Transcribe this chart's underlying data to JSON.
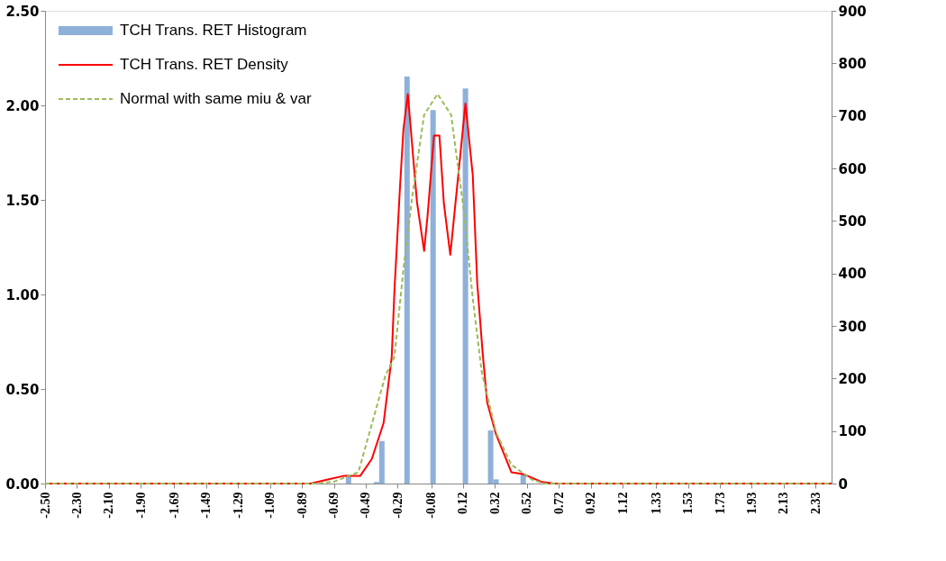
{
  "chart_data": {
    "type": "line",
    "xlim": [
      -2.5,
      2.43
    ],
    "xticks": [
      {
        "value": -2.5,
        "label": "-2.50"
      },
      {
        "value": -2.3,
        "label": "-2.30"
      },
      {
        "value": -2.1,
        "label": "-2.10"
      },
      {
        "value": -1.9,
        "label": "-1.90"
      },
      {
        "value": -1.69,
        "label": "-1.69"
      },
      {
        "value": -1.49,
        "label": "-1.49"
      },
      {
        "value": -1.29,
        "label": "-1.29"
      },
      {
        "value": -1.09,
        "label": "-1.09"
      },
      {
        "value": -0.89,
        "label": "-0.89"
      },
      {
        "value": -0.69,
        "label": "-0.69"
      },
      {
        "value": -0.49,
        "label": "-0.49"
      },
      {
        "value": -0.29,
        "label": "-0.29"
      },
      {
        "value": -0.08,
        "label": "-0.08"
      },
      {
        "value": 0.12,
        "label": "0.12"
      },
      {
        "value": 0.32,
        "label": "0.32"
      },
      {
        "value": 0.52,
        "label": "0.52"
      },
      {
        "value": 0.72,
        "label": "0.72"
      },
      {
        "value": 0.92,
        "label": "0.92"
      },
      {
        "value": 1.12,
        "label": "1.12"
      },
      {
        "value": 1.33,
        "label": "1.33"
      },
      {
        "value": 1.53,
        "label": "1.53"
      },
      {
        "value": 1.73,
        "label": "1.73"
      },
      {
        "value": 1.93,
        "label": "1.93"
      },
      {
        "value": 2.13,
        "label": "2.13"
      },
      {
        "value": 2.33,
        "label": "2.33"
      }
    ],
    "ylim": [
      0,
      2.5
    ],
    "yticks": [
      {
        "value": 0,
        "label": "0.00"
      },
      {
        "value": 0.5,
        "label": "0.50"
      },
      {
        "value": 1.0,
        "label": "1.00"
      },
      {
        "value": 1.5,
        "label": "1.50"
      },
      {
        "value": 2.0,
        "label": "2.00"
      },
      {
        "value": 2.5,
        "label": "2.50"
      }
    ],
    "y2lim": [
      0,
      900
    ],
    "y2ticks": [
      0,
      100,
      200,
      300,
      400,
      500,
      600,
      700,
      800,
      900
    ],
    "grid": false,
    "legend": "top left",
    "series": [
      {
        "name": "TCH Trans. RET Histogram",
        "type": "bar",
        "axis": "y2",
        "color": "#8eb0d9",
        "x": [
          -0.598,
          -0.423,
          -0.389,
          -0.231,
          -0.068,
          0.135,
          0.293,
          0.327,
          0.497
        ],
        "values": [
          17,
          3,
          81,
          775,
          711,
          752,
          101,
          8,
          17
        ]
      },
      {
        "name": "TCH Trans. RET Density",
        "color": "#ff0000",
        "line_style": "solid",
        "x": [
          -2.5,
          -0.835,
          -0.734,
          -0.632,
          -0.525,
          -0.452,
          -0.378,
          -0.327,
          -0.31,
          -0.277,
          -0.254,
          -0.226,
          -0.169,
          -0.124,
          -0.102,
          -0.062,
          -0.028,
          0.0,
          0.04,
          0.096,
          0.135,
          0.181,
          0.209,
          0.243,
          0.271,
          0.327,
          0.423,
          0.497,
          0.609,
          0.688,
          2.43
        ],
        "values": [
          0,
          0,
          0.02,
          0.04,
          0.04,
          0.13,
          0.32,
          0.67,
          1.02,
          1.54,
          1.87,
          2.06,
          1.49,
          1.23,
          1.42,
          1.84,
          1.84,
          1.48,
          1.21,
          1.68,
          2.01,
          1.63,
          1.06,
          0.69,
          0.43,
          0.26,
          0.06,
          0.05,
          0.01,
          0,
          0
        ]
      },
      {
        "name": "Normal with same miu & var",
        "color": "#9bbb59",
        "line_style": "dashed",
        "x": [
          -2.5,
          -0.8,
          -0.688,
          -0.536,
          -0.367,
          -0.31,
          -0.254,
          -0.198,
          -0.124,
          -0.04,
          0.045,
          0.124,
          0.181,
          0.237,
          0.327,
          0.423,
          0.553,
          0.632,
          2.43
        ],
        "values": [
          0,
          0,
          0.01,
          0.06,
          0.57,
          0.67,
          1.13,
          1.52,
          1.95,
          2.06,
          1.95,
          1.45,
          0.98,
          0.59,
          0.27,
          0.1,
          0.02,
          0,
          0
        ]
      }
    ]
  }
}
